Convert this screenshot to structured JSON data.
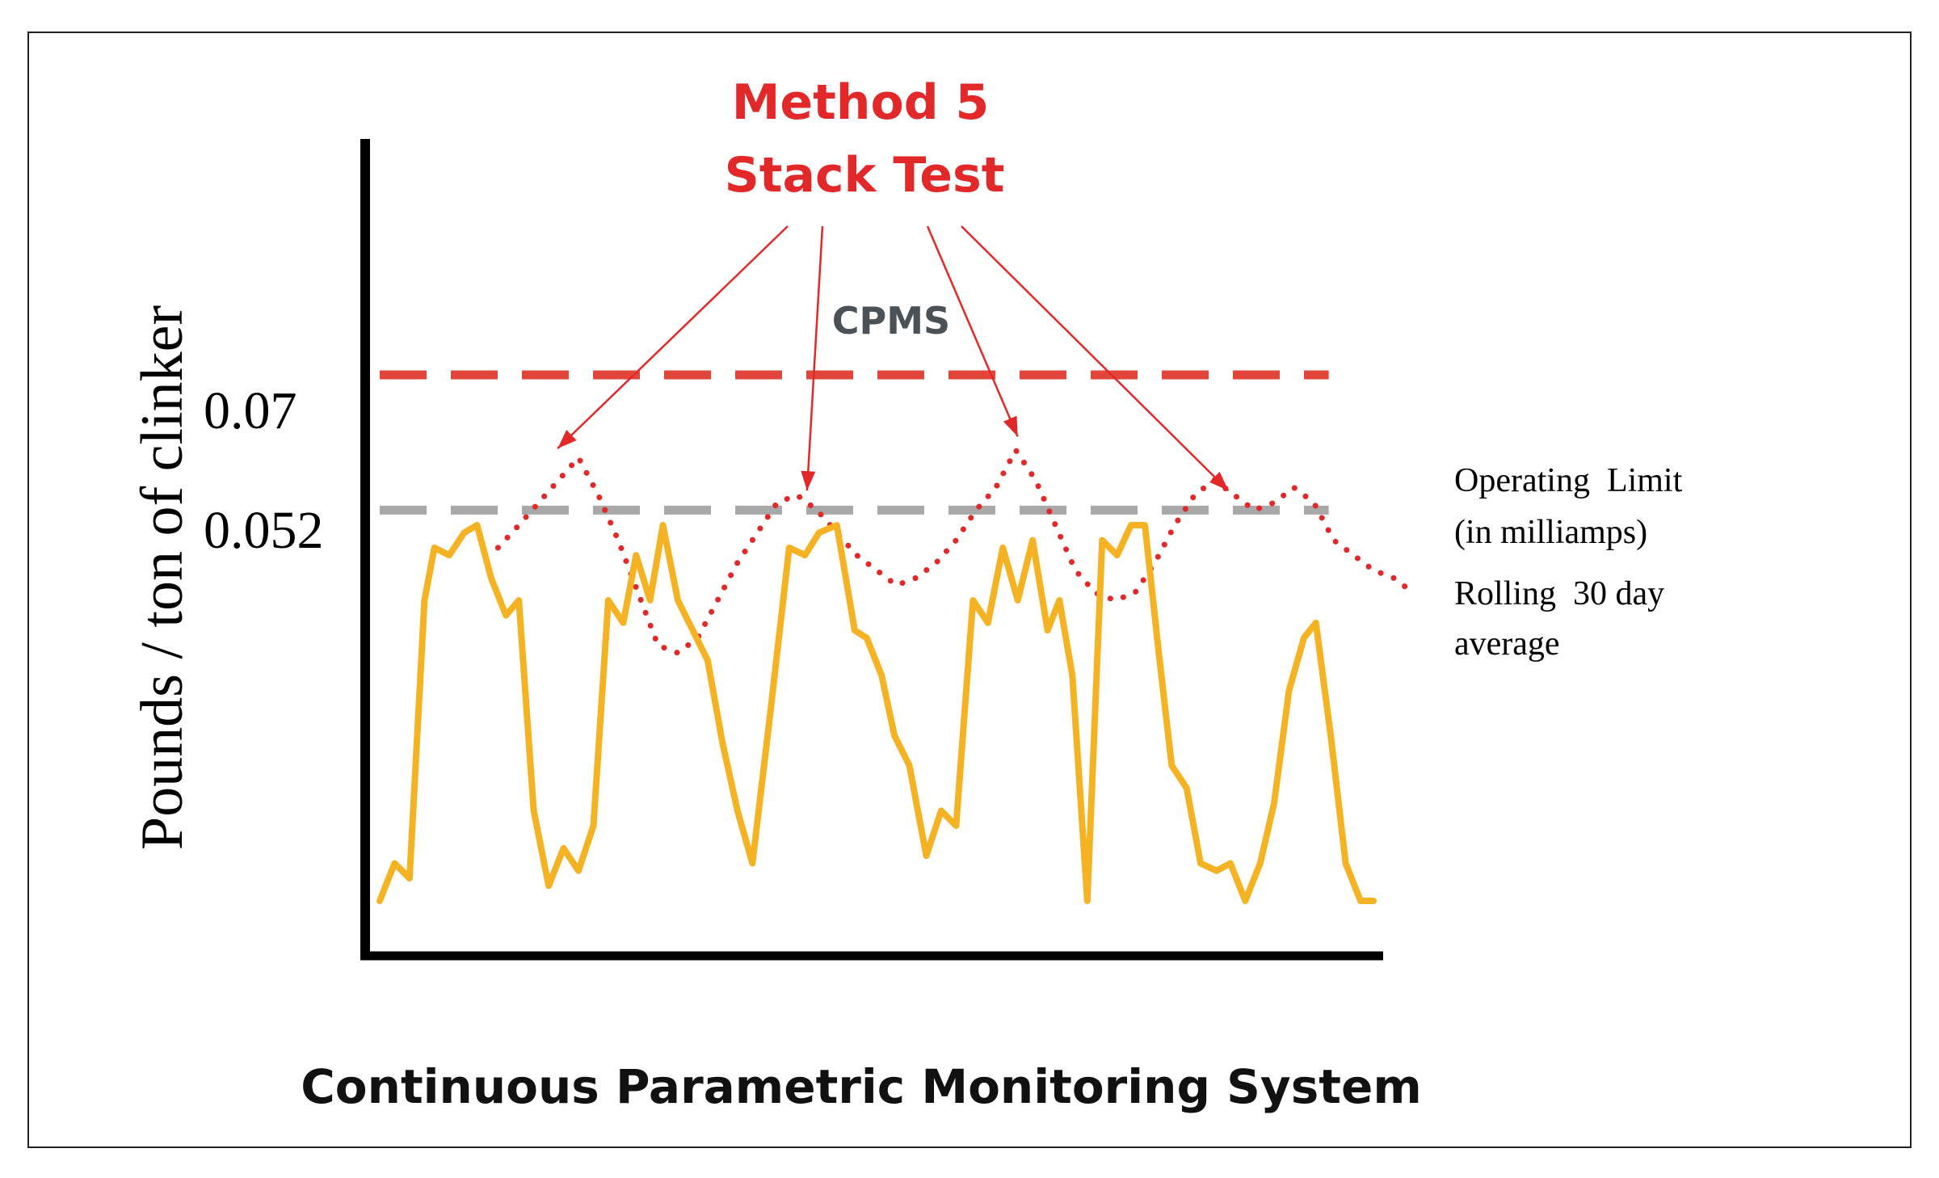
{
  "chart_data": {
    "type": "line",
    "ylabel": "Pounds / ton of clinker",
    "xlabel": "Continuous Parametric Monitoring System",
    "y_ticks": [
      {
        "value": 0.07,
        "label": "0.07"
      },
      {
        "value": 0.052,
        "label": "0.052"
      }
    ],
    "ylim": [
      0.0,
      0.1
    ],
    "xlim": [
      0,
      100
    ],
    "grid": false,
    "annotation": {
      "title_line1": "Method 5",
      "title_line2": "Stack Test",
      "color": "#e22828",
      "targets": [
        {
          "x": 17.9,
          "y": 0.0602
        },
        {
          "x": 43.0,
          "y": 0.0546
        },
        {
          "x": 64.2,
          "y": 0.0618
        },
        {
          "x": 85.4,
          "y": 0.0546
        }
      ]
    },
    "labels": {
      "cpms": "CPMS",
      "operating_limit_line1": "Operating  Limit",
      "operating_limit_line2": "(in milliamps)",
      "rolling_line1": "Rolling  30 day",
      "rolling_line2": "average"
    },
    "series": [
      {
        "name": "CPMS",
        "color": "#f5b323",
        "style": "solid",
        "x": [
          0,
          1.5,
          3,
          4.5,
          5.5,
          7,
          8.5,
          9.8,
          11.2,
          12.7,
          14,
          15.5,
          17,
          18.5,
          20,
          21.5,
          23,
          24.5,
          25.8,
          27.2,
          28.5,
          30,
          31.5,
          33,
          34.5,
          36,
          37.5,
          39.3,
          41.2,
          42.8,
          44.2,
          46,
          47.8,
          49,
          50.5,
          51.8,
          53.3,
          55,
          56.5,
          58,
          59.7,
          61.2,
          62.7,
          64.2,
          65.7,
          67.2,
          68.4,
          69.7,
          71.2,
          72.7,
          74.2,
          75.6,
          77,
          78.4,
          79.7,
          81.2,
          82.6,
          84.2,
          85.6,
          87.1,
          88.6,
          90,
          91.5,
          93,
          94.2,
          95.7,
          97.2,
          98.7,
          100
        ],
        "y": [
          0.0,
          0.005,
          0.003,
          0.04,
          0.047,
          0.046,
          0.049,
          0.05,
          0.043,
          0.038,
          0.04,
          0.012,
          0.002,
          0.007,
          0.004,
          0.01,
          0.04,
          0.037,
          0.046,
          0.04,
          0.05,
          0.04,
          0.036,
          0.032,
          0.021,
          0.012,
          0.005,
          0.025,
          0.047,
          0.046,
          0.049,
          0.05,
          0.036,
          0.035,
          0.03,
          0.022,
          0.018,
          0.006,
          0.012,
          0.01,
          0.04,
          0.037,
          0.047,
          0.04,
          0.048,
          0.036,
          0.04,
          0.03,
          0.0,
          0.048,
          0.046,
          0.05,
          0.05,
          0.033,
          0.018,
          0.015,
          0.005,
          0.004,
          0.005,
          0.0,
          0.005,
          0.013,
          0.028,
          0.035,
          0.037,
          0.022,
          0.005,
          0.0,
          0.0
        ]
      },
      {
        "name": "Rolling  30 day average",
        "color": "#e22828",
        "style": "dotted",
        "x": [
          11.9,
          14,
          16,
          18,
          20,
          22,
          24,
          26,
          28,
          30,
          32,
          34,
          36,
          38,
          40,
          42,
          44,
          46,
          48,
          50,
          52,
          54,
          56,
          58,
          60,
          62,
          64,
          66,
          68,
          70,
          72,
          74,
          76,
          78,
          80,
          82,
          84,
          86,
          88,
          90,
          92,
          94,
          96,
          98,
          100,
          102,
          104
        ],
        "y": [
          0.047,
          0.05,
          0.053,
          0.056,
          0.059,
          0.054,
          0.048,
          0.041,
          0.034,
          0.033,
          0.035,
          0.04,
          0.045,
          0.049,
          0.053,
          0.054,
          0.052,
          0.049,
          0.046,
          0.044,
          0.042,
          0.043,
          0.045,
          0.048,
          0.052,
          0.055,
          0.06,
          0.056,
          0.05,
          0.044,
          0.041,
          0.04,
          0.041,
          0.045,
          0.05,
          0.054,
          0.056,
          0.054,
          0.052,
          0.053,
          0.055,
          0.053,
          0.048,
          0.046,
          0.044,
          0.043,
          0.041
        ]
      },
      {
        "name": "Operating  Limit (in milliamps)",
        "color": "#a8a8a8",
        "style": "dashed",
        "x": [
          0,
          95.5
        ],
        "y": [
          0.052,
          0.052
        ]
      },
      {
        "name": "0.07 limit",
        "color": "#e2463a",
        "style": "dashed",
        "x": [
          0,
          95.5
        ],
        "y": [
          0.07,
          0.07
        ]
      }
    ]
  }
}
